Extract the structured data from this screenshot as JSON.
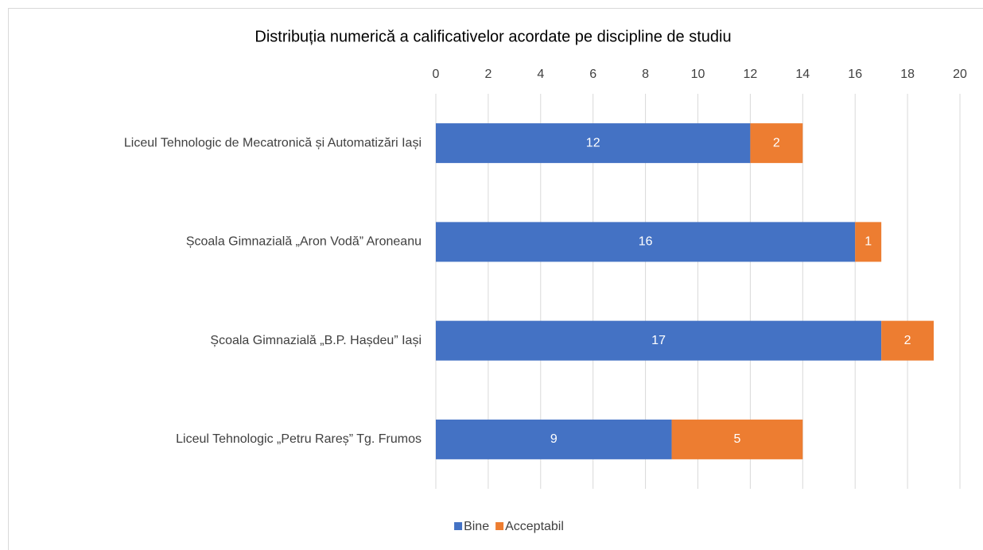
{
  "chart_data": {
    "type": "bar",
    "orientation": "horizontal",
    "stacked": true,
    "title": "Distribuția numerică a calificativelor acordate pe discipline de studiu",
    "categories": [
      "Liceul Tehnologic de Mecatronică și Automatizări Iași",
      "Școala Gimnazială „Aron Vodă” Aroneanu",
      "Școala Gimnazială „B.P. Hașdeu” Iași",
      "Liceul Tehnologic „Petru Rareș” Tg. Frumos"
    ],
    "series": [
      {
        "name": "Bine",
        "color": "#4472c4",
        "values": [
          12,
          16,
          17,
          9
        ]
      },
      {
        "name": "Acceptabil",
        "color": "#ed7d31",
        "values": [
          2,
          1,
          2,
          5
        ]
      }
    ],
    "xlim": [
      0,
      20
    ],
    "xticks": [
      0,
      2,
      4,
      6,
      8,
      10,
      12,
      14,
      16,
      18,
      20
    ],
    "grid": true,
    "legend": "bottom"
  }
}
